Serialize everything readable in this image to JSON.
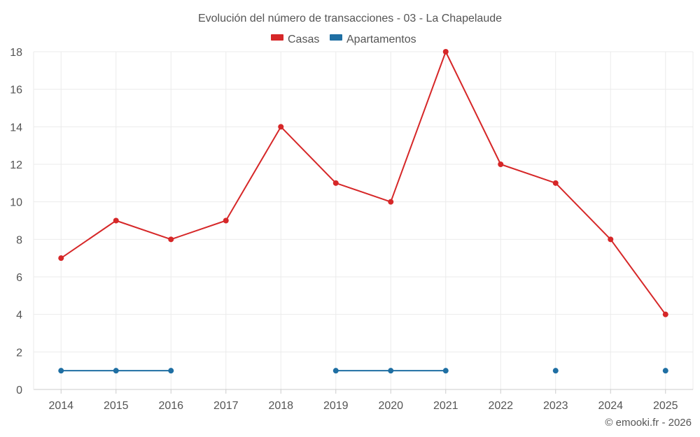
{
  "chart_data": {
    "type": "line",
    "title": "Evolución del número de transacciones - 03 - La Chapelaude",
    "categories": [
      "2014",
      "2015",
      "2016",
      "2017",
      "2018",
      "2019",
      "2020",
      "2021",
      "2022",
      "2023",
      "2024",
      "2025"
    ],
    "ylim": [
      0,
      18
    ],
    "yticks": [
      "0",
      "2",
      "4",
      "6",
      "8",
      "10",
      "12",
      "14",
      "16",
      "18"
    ],
    "grid": true,
    "legend_position": "top-center",
    "series": [
      {
        "name": "Casas",
        "color": "#d62728",
        "values": [
          7,
          9,
          8,
          9,
          14,
          11,
          10,
          18,
          12,
          11,
          8,
          4
        ]
      },
      {
        "name": "Apartamentos",
        "color": "#1f6fa3",
        "values": [
          1,
          1,
          1,
          null,
          null,
          1,
          1,
          1,
          null,
          1,
          null,
          1
        ]
      }
    ]
  },
  "credit": "© emooki.fr - 2026"
}
